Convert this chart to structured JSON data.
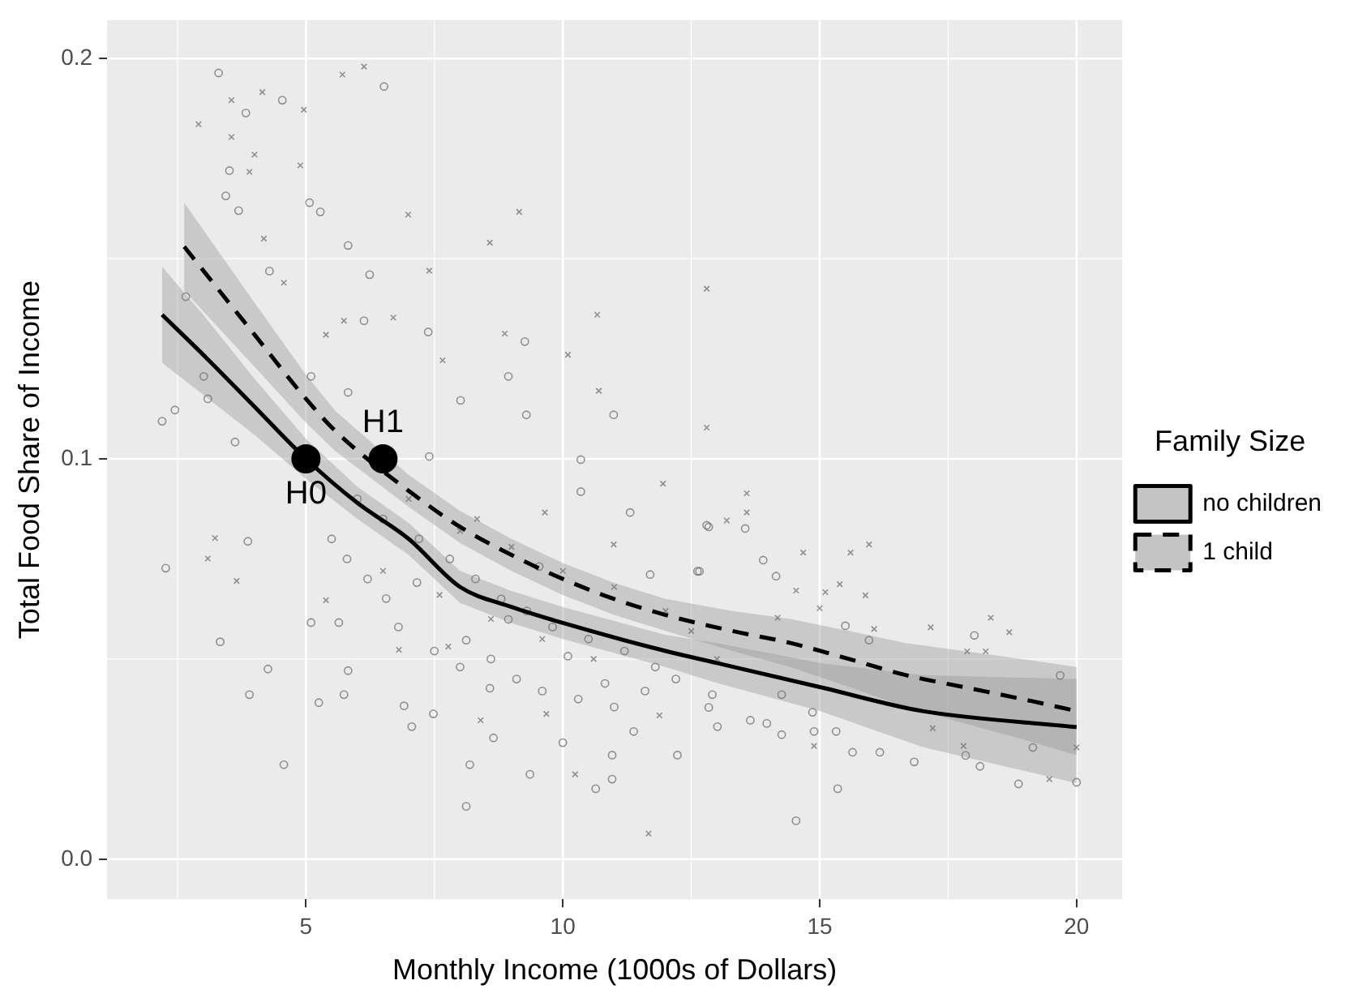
{
  "chart_data": {
    "type": "scatter",
    "xlabel": "Monthly Income (1000s of Dollars)",
    "ylabel": "Total Food Share of Income",
    "legend_title": "Family Size",
    "xlim": [
      1.13,
      20.89
    ],
    "ylim": [
      -0.01,
      0.2096
    ],
    "xticks": [
      5,
      10,
      15,
      20
    ],
    "yticks": [
      {
        "value": 0,
        "label": "0.0"
      },
      {
        "value": 0.1,
        "label": "0.1"
      },
      {
        "value": 0.2,
        "label": "0.2"
      }
    ],
    "grid": true,
    "legend": "right",
    "series": [
      {
        "type": "scatter",
        "marker": "circle",
        "color": "#707070",
        "x": [
          3.3,
          3.83,
          4.54,
          6.52,
          3.51,
          3.44,
          3.69,
          5.07,
          5.28,
          5.82,
          6.24,
          4.29,
          2.66,
          6.13,
          7.38,
          9.26,
          8.94,
          5.1,
          3.01,
          3.09,
          2.2,
          2.45,
          3.62,
          5.82,
          8.01,
          9.29,
          10.99,
          7.4,
          10.35,
          2.27,
          3.33,
          3.9,
          4.26,
          4.57,
          5.25,
          5.74,
          5.1,
          3.87,
          5.64,
          5.82,
          6.91,
          7.06,
          7.48,
          8.19,
          8.12,
          8.65,
          9.36,
          10.0,
          10.64,
          10.96,
          10.96,
          11.38,
          12.23,
          11.7,
          12.62,
          10.1,
          8.58,
          8.12,
          6.56,
          7.16,
          8.94,
          10.35,
          11.31,
          12.84,
          9.54,
          10.82,
          12.8,
          13.55,
          13.9,
          14.15,
          12.66,
          15.5,
          15.96,
          18.01,
          19.68,
          12.84,
          13.01,
          13.65,
          13.97,
          14.26,
          14.89,
          15.32,
          15.64,
          16.17,
          16.84,
          17.84,
          18.12,
          18.87,
          20.0,
          15.35,
          14.54,
          19.15,
          14.26,
          12.91,
          14.86,
          6.5,
          7.2,
          7.8,
          8.3,
          8.8,
          9.3,
          9.8,
          10.5,
          11.2,
          11.8,
          6.8,
          7.5,
          8.0,
          8.6,
          9.1,
          9.6,
          10.3,
          11.0,
          11.6,
          12.2,
          6.2,
          5.8,
          5.5,
          6.0
        ],
        "values": [
          0.1964,
          0.1864,
          0.1896,
          0.193,
          0.172,
          0.1657,
          0.162,
          0.164,
          0.1617,
          0.1533,
          0.146,
          0.1469,
          0.1405,
          0.1345,
          0.1317,
          0.1293,
          0.1206,
          0.1206,
          0.1206,
          0.115,
          0.1094,
          0.1122,
          0.1042,
          0.1166,
          0.1146,
          0.111,
          0.111,
          0.1006,
          0.0998,
          0.0727,
          0.0543,
          0.0411,
          0.0475,
          0.0236,
          0.0391,
          0.0411,
          0.0591,
          0.0794,
          0.0591,
          0.0471,
          0.0383,
          0.0331,
          0.0363,
          0.0236,
          0.0132,
          0.0303,
          0.0212,
          0.0291,
          0.0176,
          0.02,
          0.026,
          0.0319,
          0.026,
          0.0711,
          0.0719,
          0.0507,
          0.0427,
          0.0547,
          0.0651,
          0.0691,
          0.0599,
          0.0918,
          0.0866,
          0.083,
          0.0731,
          0.0439,
          0.0834,
          0.0826,
          0.0747,
          0.0707,
          0.0719,
          0.0583,
          0.0547,
          0.0559,
          0.0459,
          0.0379,
          0.0331,
          0.0347,
          0.0339,
          0.0311,
          0.0319,
          0.0319,
          0.0267,
          0.0267,
          0.0243,
          0.0259,
          0.0232,
          0.0188,
          0.0192,
          0.0176,
          0.0096,
          0.0279,
          0.0411,
          0.0411,
          0.0367,
          0.085,
          0.08,
          0.075,
          0.07,
          0.065,
          0.062,
          0.058,
          0.055,
          0.052,
          0.048,
          0.058,
          0.052,
          0.048,
          0.05,
          0.045,
          0.042,
          0.04,
          0.038,
          0.042,
          0.045,
          0.07,
          0.075,
          0.08,
          0.09
        ]
      },
      {
        "type": "scatter",
        "marker": "cross",
        "color": "#707070",
        "x": [
          2.91,
          3.55,
          4.15,
          4.96,
          5.71,
          6.13,
          3.55,
          4.0,
          3.9,
          4.89,
          6.99,
          9.15,
          8.58,
          10.67,
          12.8,
          7.4,
          4.18,
          4.57,
          5.74,
          6.7,
          7.66,
          8.87,
          10.1,
          10.7,
          12.8,
          5.39,
          3.09,
          3.65,
          3.23,
          11.67,
          9.68,
          10.24,
          8.4,
          6.81,
          10.99,
          11.95,
          8.33,
          5.39,
          7.77,
          9.65,
          11.88,
          13.58,
          13.58,
          13.19,
          14.68,
          15.6,
          15.96,
          14.54,
          15.11,
          15.39,
          15.89,
          15.0,
          17.16,
          18.33,
          18.69,
          17.87,
          18.23,
          16.06,
          14.18,
          14.89,
          17.8,
          17.2,
          19.47,
          20.0,
          7.0,
          8.0,
          9.0,
          10.0,
          11.0,
          12.0,
          12.5,
          13.0,
          6.5,
          7.6,
          8.6,
          9.6,
          10.6
        ],
        "values": [
          0.1836,
          0.1896,
          0.1916,
          0.1872,
          0.196,
          0.198,
          0.1804,
          0.176,
          0.1717,
          0.1733,
          0.161,
          0.1617,
          0.154,
          0.136,
          0.1425,
          0.147,
          0.155,
          0.144,
          0.1345,
          0.1353,
          0.1246,
          0.1313,
          0.126,
          0.117,
          0.1078,
          0.131,
          0.0751,
          0.0695,
          0.0802,
          0.0064,
          0.0363,
          0.0212,
          0.0347,
          0.0523,
          0.0786,
          0.0938,
          0.085,
          0.0647,
          0.0531,
          0.0866,
          0.0359,
          0.0914,
          0.0866,
          0.0846,
          0.0766,
          0.0766,
          0.0786,
          0.0671,
          0.0667,
          0.0687,
          0.0659,
          0.0627,
          0.0579,
          0.0603,
          0.0567,
          0.0519,
          0.0519,
          0.0575,
          0.0603,
          0.0283,
          0.0283,
          0.0327,
          0.02,
          0.0279,
          0.09,
          0.082,
          0.078,
          0.072,
          0.068,
          0.062,
          0.057,
          0.05,
          0.072,
          0.066,
          0.06,
          0.055,
          0.05
        ]
      },
      {
        "type": "line",
        "name": "no children",
        "line_style": "solid",
        "color": "#000000",
        "x": [
          2.2,
          3,
          4,
          5,
          6,
          7,
          8,
          9,
          10,
          12,
          13,
          15,
          17,
          20
        ],
        "values": [
          0.136,
          0.126,
          0.113,
          0.1,
          0.089,
          0.08,
          0.068,
          0.063,
          0.059,
          0.052,
          0.049,
          0.043,
          0.037,
          0.033
        ],
        "lower": [
          0.124,
          0.116,
          0.106,
          0.095,
          0.085,
          0.076,
          0.064,
          0.059,
          0.055,
          0.048,
          0.044,
          0.037,
          0.028,
          0.019
        ],
        "upper": [
          0.148,
          0.136,
          0.12,
          0.105,
          0.093,
          0.084,
          0.072,
          0.067,
          0.063,
          0.056,
          0.054,
          0.049,
          0.046,
          0.045
        ]
      },
      {
        "type": "line",
        "name": "1 child",
        "line_style": "dashed",
        "color": "#000000",
        "x": [
          2.63,
          4,
          5,
          5.57,
          7,
          8,
          9,
          10,
          11,
          12,
          13.3,
          14.43,
          15.57,
          16.67,
          17.8,
          18.94,
          20
        ],
        "values": [
          0.153,
          0.131,
          0.115,
          0.107,
          0.092,
          0.083,
          0.076,
          0.07,
          0.065,
          0.061,
          0.057,
          0.054,
          0.05,
          0.046,
          0.043,
          0.04,
          0.037
        ],
        "lower": [
          0.142,
          0.123,
          0.109,
          0.102,
          0.088,
          0.079,
          0.072,
          0.066,
          0.061,
          0.057,
          0.052,
          0.048,
          0.043,
          0.038,
          0.034,
          0.03,
          0.026
        ],
        "upper": [
          0.164,
          0.139,
          0.121,
          0.112,
          0.096,
          0.087,
          0.08,
          0.074,
          0.069,
          0.065,
          0.062,
          0.06,
          0.057,
          0.054,
          0.052,
          0.05,
          0.048
        ]
      },
      {
        "type": "scatter",
        "marker": "circle",
        "color": "#000000",
        "x": [
          5,
          6.5
        ],
        "values": [
          0.1,
          0.1
        ]
      }
    ],
    "annotations": [
      {
        "text": "H0",
        "x": 5,
        "y": 0.1
      },
      {
        "text": "H1",
        "x": 6.5,
        "y": 0.1
      }
    ]
  }
}
